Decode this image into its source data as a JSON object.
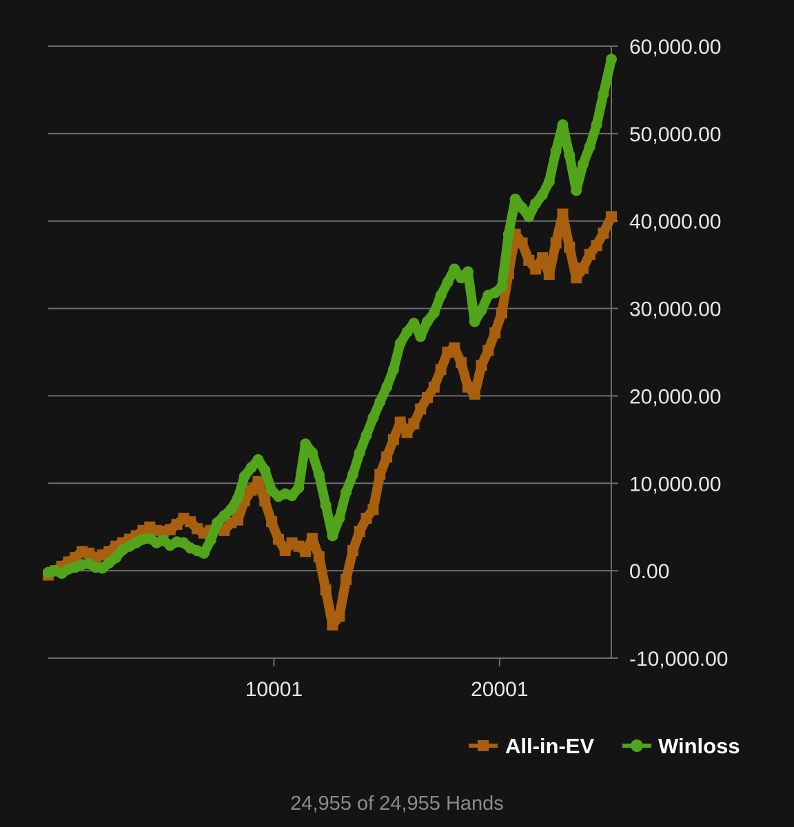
{
  "chart_data": {
    "type": "line",
    "xlim": [
      0,
      24955
    ],
    "ylim": [
      -10000,
      60000
    ],
    "y_ticks": [
      {
        "value": 60000,
        "label": "60,000.00"
      },
      {
        "value": 50000,
        "label": "50,000.00"
      },
      {
        "value": 40000,
        "label": "40,000.00"
      },
      {
        "value": 30000,
        "label": "30,000.00"
      },
      {
        "value": 20000,
        "label": "20,000.00"
      },
      {
        "value": 10000,
        "label": "10,000.00"
      },
      {
        "value": 0,
        "label": "0.00"
      },
      {
        "value": -10000,
        "label": "-10,000.00"
      }
    ],
    "x_ticks": [
      {
        "value": 10001,
        "label": "10001"
      },
      {
        "value": 20001,
        "label": "20001"
      }
    ],
    "grid": true,
    "y_axis_position": "right",
    "legend_position": "bottom-right",
    "series": [
      {
        "name": "All-in-EV",
        "color": "#a8600e",
        "marker": "square",
        "points": [
          [
            0,
            -500
          ],
          [
            300,
            0
          ],
          [
            600,
            500
          ],
          [
            900,
            1000
          ],
          [
            1200,
            1500
          ],
          [
            1500,
            2200
          ],
          [
            1800,
            2000
          ],
          [
            2100,
            1500
          ],
          [
            2400,
            1800
          ],
          [
            2700,
            2200
          ],
          [
            3000,
            2800
          ],
          [
            3300,
            3200
          ],
          [
            3600,
            3600
          ],
          [
            3900,
            4000
          ],
          [
            4200,
            4600
          ],
          [
            4500,
            5000
          ],
          [
            4800,
            4600
          ],
          [
            5100,
            4500
          ],
          [
            5400,
            4700
          ],
          [
            5700,
            5300
          ],
          [
            6000,
            6000
          ],
          [
            6300,
            5600
          ],
          [
            6600,
            4800
          ],
          [
            6900,
            4300
          ],
          [
            7200,
            4600
          ],
          [
            7500,
            5200
          ],
          [
            7800,
            4600
          ],
          [
            8100,
            5500
          ],
          [
            8400,
            5800
          ],
          [
            8700,
            8000
          ],
          [
            9000,
            9200
          ],
          [
            9300,
            10200
          ],
          [
            9600,
            8000
          ],
          [
            9900,
            5600
          ],
          [
            10200,
            3600
          ],
          [
            10500,
            2300
          ],
          [
            10800,
            3200
          ],
          [
            11100,
            2800
          ],
          [
            11400,
            2200
          ],
          [
            11700,
            3700
          ],
          [
            12000,
            1600
          ],
          [
            12300,
            -2200
          ],
          [
            12600,
            -6200
          ],
          [
            12900,
            -5200
          ],
          [
            13200,
            -1000
          ],
          [
            13500,
            2300
          ],
          [
            13800,
            4500
          ],
          [
            14100,
            6000
          ],
          [
            14400,
            7000
          ],
          [
            14700,
            11000
          ],
          [
            15000,
            13000
          ],
          [
            15300,
            15000
          ],
          [
            15600,
            17000
          ],
          [
            15900,
            15800
          ],
          [
            16200,
            16800
          ],
          [
            16500,
            18500
          ],
          [
            16800,
            19800
          ],
          [
            17100,
            21000
          ],
          [
            17400,
            23000
          ],
          [
            17700,
            25000
          ],
          [
            18000,
            25500
          ],
          [
            18300,
            23800
          ],
          [
            18600,
            21000
          ],
          [
            18900,
            20200
          ],
          [
            19200,
            23500
          ],
          [
            19500,
            25200
          ],
          [
            19800,
            27200
          ],
          [
            20100,
            29500
          ],
          [
            20400,
            34000
          ],
          [
            20700,
            38500
          ],
          [
            21000,
            37500
          ],
          [
            21300,
            35500
          ],
          [
            21600,
            34500
          ],
          [
            21900,
            35800
          ],
          [
            22200,
            33900
          ],
          [
            22500,
            37500
          ],
          [
            22800,
            40800
          ],
          [
            23100,
            37000
          ],
          [
            23400,
            33500
          ],
          [
            23700,
            34600
          ],
          [
            24000,
            36200
          ],
          [
            24300,
            37200
          ],
          [
            24600,
            38600
          ],
          [
            24955,
            40500
          ]
        ]
      },
      {
        "name": "Winloss",
        "color": "#52a51a",
        "marker": "circle",
        "points": [
          [
            0,
            -200
          ],
          [
            300,
            0
          ],
          [
            600,
            -300
          ],
          [
            900,
            200
          ],
          [
            1200,
            400
          ],
          [
            1500,
            700
          ],
          [
            1800,
            800
          ],
          [
            2100,
            400
          ],
          [
            2400,
            300
          ],
          [
            2700,
            900
          ],
          [
            3000,
            1500
          ],
          [
            3300,
            2400
          ],
          [
            3600,
            2800
          ],
          [
            3900,
            3200
          ],
          [
            4200,
            3600
          ],
          [
            4500,
            3700
          ],
          [
            4800,
            3200
          ],
          [
            5100,
            3500
          ],
          [
            5400,
            2900
          ],
          [
            5700,
            3300
          ],
          [
            6000,
            3200
          ],
          [
            6300,
            2600
          ],
          [
            6600,
            2300
          ],
          [
            6900,
            2000
          ],
          [
            7200,
            3500
          ],
          [
            7500,
            5500
          ],
          [
            7800,
            6300
          ],
          [
            8100,
            7000
          ],
          [
            8400,
            8300
          ],
          [
            8700,
            10800
          ],
          [
            9000,
            11800
          ],
          [
            9300,
            12700
          ],
          [
            9600,
            11500
          ],
          [
            9900,
            9200
          ],
          [
            10200,
            8500
          ],
          [
            10500,
            8800
          ],
          [
            10800,
            8600
          ],
          [
            11100,
            9500
          ],
          [
            11400,
            14500
          ],
          [
            11700,
            13500
          ],
          [
            12000,
            11000
          ],
          [
            12300,
            7500
          ],
          [
            12600,
            4000
          ],
          [
            12900,
            6000
          ],
          [
            13200,
            9000
          ],
          [
            13500,
            11000
          ],
          [
            13800,
            13500
          ],
          [
            14100,
            15500
          ],
          [
            14400,
            17500
          ],
          [
            14700,
            19300
          ],
          [
            15000,
            21000
          ],
          [
            15300,
            23000
          ],
          [
            15600,
            26000
          ],
          [
            15900,
            27300
          ],
          [
            16200,
            28300
          ],
          [
            16500,
            26800
          ],
          [
            16800,
            28500
          ],
          [
            17100,
            29500
          ],
          [
            17400,
            31500
          ],
          [
            17700,
            33000
          ],
          [
            18000,
            34500
          ],
          [
            18300,
            33500
          ],
          [
            18600,
            34200
          ],
          [
            18900,
            28500
          ],
          [
            19200,
            29800
          ],
          [
            19500,
            31500
          ],
          [
            19800,
            31800
          ],
          [
            20100,
            32500
          ],
          [
            20400,
            38500
          ],
          [
            20700,
            42500
          ],
          [
            21000,
            41500
          ],
          [
            21300,
            40500
          ],
          [
            21600,
            42000
          ],
          [
            21900,
            43000
          ],
          [
            22200,
            44500
          ],
          [
            22500,
            48000
          ],
          [
            22800,
            51000
          ],
          [
            23100,
            47500
          ],
          [
            23400,
            43500
          ],
          [
            23700,
            46500
          ],
          [
            24000,
            48500
          ],
          [
            24300,
            51000
          ],
          [
            24600,
            54500
          ],
          [
            24955,
            58500
          ]
        ]
      }
    ],
    "footer": "24,955 of 24,955 Hands"
  }
}
